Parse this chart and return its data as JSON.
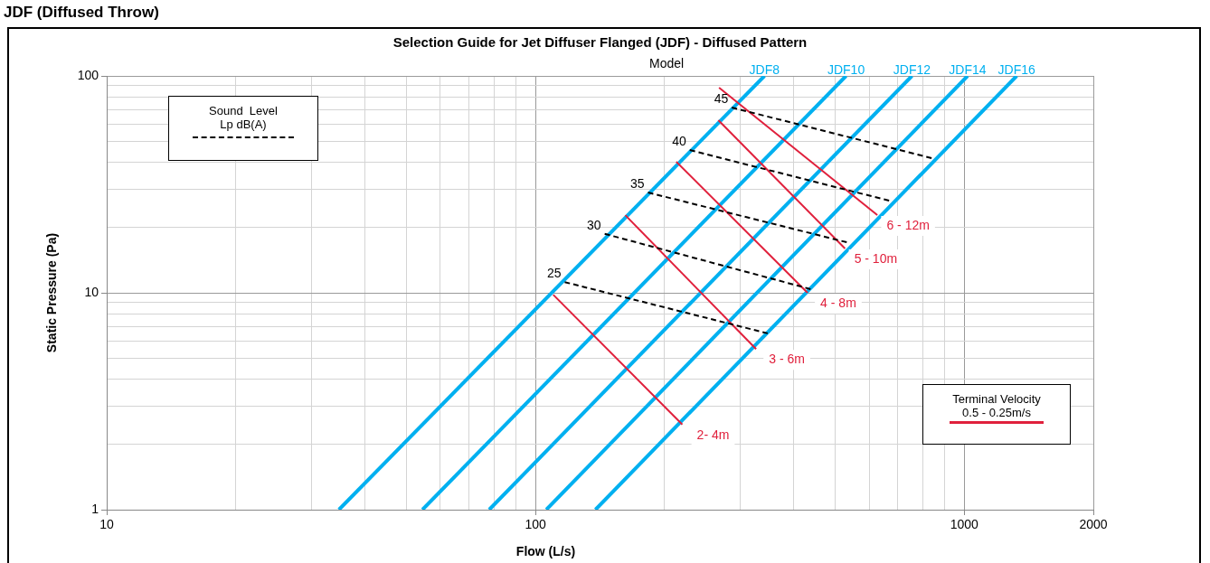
{
  "chart_data": {
    "type": "line",
    "title": "Selection Guide for Jet Diffuser Flanged (JDF) - Diffused Pattern",
    "xlabel": "Flow (L/s)",
    "ylabel": "Static Pressure (Pa)",
    "annotations": [
      "JDF (Diffused Throw)",
      "Model",
      "Sound  Level",
      "Lp dB(A)",
      "Terminal Velocity",
      "0.5 - 0.25m/s"
    ],
    "log": "xy",
    "grid": true,
    "marker": "none",
    "xlim": [
      10,
      2000
    ],
    "ylim": [
      1,
      100
    ],
    "xticks": [
      10,
      {
        "value": 20,
        "label": null
      },
      {
        "value": 30,
        "label": null
      },
      {
        "value": 40,
        "label": null
      },
      {
        "value": 50,
        "label": null
      },
      {
        "value": 60,
        "label": null
      },
      {
        "value": 70,
        "label": null
      },
      {
        "value": 80,
        "label": null
      },
      {
        "value": 90,
        "label": null
      },
      100,
      {
        "value": 200,
        "label": null
      },
      {
        "value": 300,
        "label": null
      },
      {
        "value": 400,
        "label": null
      },
      {
        "value": 500,
        "label": null
      },
      {
        "value": 600,
        "label": null
      },
      {
        "value": 700,
        "label": null
      },
      {
        "value": 800,
        "label": null
      },
      {
        "value": 900,
        "label": null
      },
      1000,
      2000
    ],
    "yticks": [
      1,
      {
        "value": 2,
        "label": null
      },
      {
        "value": 3,
        "label": null
      },
      {
        "value": 4,
        "label": null
      },
      {
        "value": 5,
        "label": null
      },
      {
        "value": 6,
        "label": null
      },
      {
        "value": 7,
        "label": null
      },
      {
        "value": 8,
        "label": null
      },
      {
        "value": 9,
        "label": null
      },
      10,
      {
        "value": 20,
        "label": null
      },
      {
        "value": 30,
        "label": null
      },
      {
        "value": 40,
        "label": null
      },
      {
        "value": 50,
        "label": null
      },
      {
        "value": 60,
        "label": null
      },
      {
        "value": 70,
        "label": null
      },
      {
        "value": 80,
        "label": null
      },
      {
        "value": 90,
        "label": null
      },
      100
    ],
    "series": [
      {
        "name": "JDF8",
        "color": "#00b0f0",
        "x": [
          34.8,
          342
        ],
        "values": [
          1,
          100
        ]
      },
      {
        "name": "JDF10",
        "color": "#00b0f0",
        "x": [
          54.5,
          530
        ],
        "values": [
          1,
          100
        ]
      },
      {
        "name": "JDF12",
        "color": "#00b0f0",
        "x": [
          78,
          755
        ],
        "values": [
          1,
          100
        ]
      },
      {
        "name": "JDF14",
        "color": "#00b0f0",
        "x": [
          106,
          1018
        ],
        "values": [
          1,
          100
        ]
      },
      {
        "name": "JDF16",
        "color": "#00b0f0",
        "x": [
          138,
          1325
        ],
        "values": [
          1,
          100
        ]
      },
      {
        "name": "6 - 12m",
        "color": "#e0203c",
        "x": [
          268,
          627
        ],
        "values": [
          88.3,
          22.8
        ]
      },
      {
        "name": "5 - 10m",
        "color": "#e0203c",
        "x": [
          267,
          527
        ],
        "values": [
          62.5,
          16.0
        ]
      },
      {
        "name": "4 - 8m",
        "color": "#e0203c",
        "x": [
          213,
          431
        ],
        "values": [
          40.2,
          10.0
        ]
      },
      {
        "name": "3 - 6m",
        "color": "#e0203c",
        "x": [
          162,
          327
        ],
        "values": [
          22.8,
          5.5
        ]
      },
      {
        "name": "2- 4m",
        "color": "#e0203c",
        "x": [
          110,
          220
        ],
        "values": [
          9.8,
          2.47
        ]
      },
      {
        "name": "45",
        "color": "#000000",
        "line_style": "dashed",
        "x": [
          287,
          839
        ],
        "values": [
          71.5,
          41.8
        ]
      },
      {
        "name": "40",
        "color": "#000000",
        "line_style": "dashed",
        "x": [
          229,
          668
        ],
        "values": [
          45.5,
          26.6
        ]
      },
      {
        "name": "35",
        "color": "#000000",
        "line_style": "dashed",
        "x": [
          183,
          532
        ],
        "values": [
          29.0,
          17.1
        ]
      },
      {
        "name": "30",
        "color": "#000000",
        "line_style": "dashed",
        "x": [
          145,
          438
        ],
        "values": [
          18.7,
          10.4
        ]
      },
      {
        "name": "25",
        "color": "#000000",
        "line_style": "dashed",
        "x": [
          117,
          348
        ],
        "values": [
          11.2,
          6.5
        ]
      }
    ]
  }
}
